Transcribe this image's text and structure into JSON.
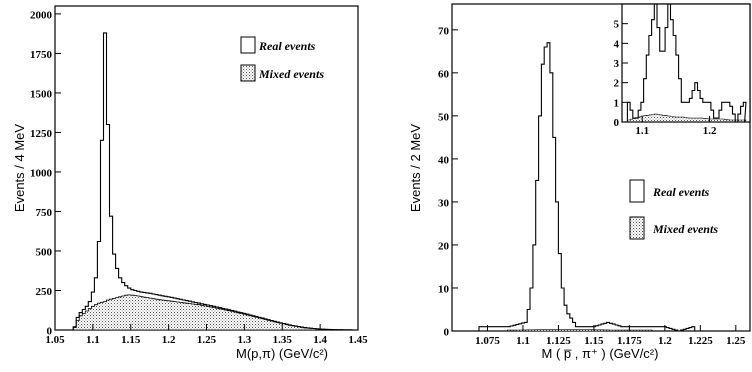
{
  "chart_data": [
    {
      "type": "histogram",
      "ylabel": "Events  / 4 MeV",
      "xlabel": "M(p,π)  (GeV/c²)",
      "xlim": [
        1.05,
        1.45
      ],
      "ylim": [
        0,
        2050
      ],
      "xticks": [
        "1.05",
        "1.1",
        "1.15",
        "1.2",
        "1.25",
        "1.3",
        "1.35",
        "1.4",
        "1.45"
      ],
      "yticks": [
        "0",
        "250",
        "500",
        "750",
        "1000",
        "1250",
        "1500",
        "1750",
        "2000"
      ],
      "legend": [
        "Real events",
        "Mixed events"
      ],
      "legend_position": "top-right",
      "bin_width": 0.004,
      "series": [
        {
          "name": "Real events",
          "style": "outline",
          "x": [
            1.076,
            1.08,
            1.084,
            1.088,
            1.092,
            1.096,
            1.1,
            1.104,
            1.108,
            1.112,
            1.116,
            1.12,
            1.124,
            1.128,
            1.132,
            1.136,
            1.14,
            1.144,
            1.148,
            1.152,
            1.156,
            1.16,
            1.164,
            1.168,
            1.172,
            1.176,
            1.18,
            1.188,
            1.2,
            1.22,
            1.24,
            1.26,
            1.28,
            1.3,
            1.32,
            1.34,
            1.36,
            1.38,
            1.4,
            1.42,
            1.44
          ],
          "values": [
            20,
            80,
            110,
            130,
            150,
            180,
            240,
            330,
            560,
            1200,
            1880,
            1300,
            720,
            480,
            390,
            330,
            300,
            280,
            265,
            255,
            250,
            245,
            240,
            238,
            235,
            232,
            228,
            220,
            210,
            190,
            170,
            150,
            128,
            105,
            80,
            55,
            32,
            15,
            6,
            2,
            1
          ]
        },
        {
          "name": "Mixed events",
          "style": "stippled",
          "x": [
            1.076,
            1.08,
            1.084,
            1.088,
            1.092,
            1.096,
            1.1,
            1.104,
            1.108,
            1.112,
            1.116,
            1.12,
            1.124,
            1.128,
            1.132,
            1.136,
            1.14,
            1.144,
            1.148,
            1.152,
            1.156,
            1.16,
            1.164,
            1.168,
            1.172,
            1.176,
            1.18,
            1.188,
            1.2,
            1.22,
            1.24,
            1.26,
            1.28,
            1.3,
            1.32,
            1.34,
            1.36,
            1.38,
            1.4,
            1.42,
            1.44
          ],
          "values": [
            15,
            60,
            90,
            105,
            120,
            135,
            150,
            160,
            170,
            175,
            180,
            190,
            195,
            200,
            205,
            210,
            215,
            220,
            222,
            220,
            218,
            215,
            212,
            208,
            205,
            202,
            198,
            192,
            185,
            172,
            160,
            142,
            122,
            100,
            76,
            52,
            30,
            14,
            5,
            1,
            0
          ]
        }
      ]
    },
    {
      "type": "histogram",
      "ylabel": "Events  / 2 MeV",
      "xlabel": "M ( p̅ , π⁺ )   (GeV/c²)",
      "xlim": [
        1.05,
        1.26
      ],
      "ylim": [
        0,
        76
      ],
      "xticks": [
        "1.075",
        "1.1",
        "1.125",
        "1.15",
        "1.175",
        "1.2",
        "1.225",
        "1.25"
      ],
      "yticks": [
        "0",
        "10",
        "20",
        "30",
        "40",
        "50",
        "60",
        "70"
      ],
      "legend": [
        "Real events",
        "Mixed events"
      ],
      "legend_position": "center-right",
      "bin_width": 0.002,
      "series": [
        {
          "name": "Real events",
          "style": "outline",
          "x": [
            1.07,
            1.09,
            1.102,
            1.104,
            1.106,
            1.108,
            1.11,
            1.112,
            1.114,
            1.116,
            1.118,
            1.12,
            1.122,
            1.124,
            1.126,
            1.128,
            1.13,
            1.132,
            1.134,
            1.136,
            1.138,
            1.14,
            1.15,
            1.16,
            1.17,
            1.18,
            1.19,
            1.2,
            1.21,
            1.22
          ],
          "values": [
            1,
            1,
            2,
            5,
            10,
            20,
            35,
            50,
            62,
            66,
            67,
            60,
            45,
            30,
            18,
            10,
            6,
            4,
            3,
            2,
            1,
            1,
            1,
            2,
            1,
            1,
            1,
            1,
            0,
            1
          ]
        },
        {
          "name": "Mixed events",
          "style": "stippled",
          "x": [
            1.09,
            1.11,
            1.13,
            1.15,
            1.17,
            1.19
          ],
          "values": [
            0.2,
            0.3,
            0.3,
            0.3,
            0.2,
            0.2
          ]
        }
      ],
      "inset": {
        "xlim": [
          1.07,
          1.26
        ],
        "ylim": [
          0,
          6
        ],
        "xticks": [
          "1.1",
          "1.2"
        ],
        "yticks": [
          "0",
          "1",
          "2",
          "3",
          "4",
          "5"
        ],
        "series": [
          {
            "name": "Real events",
            "x": [
              1.08,
              1.09,
              1.1,
              1.11,
              1.12,
              1.13,
              1.14,
              1.15,
              1.16,
              1.17,
              1.18,
              1.19,
              1.2,
              1.21,
              1.22,
              1.23,
              1.24,
              1.25
            ],
            "values": [
              1,
              0,
              1,
              4,
              6,
              3,
              6,
              4,
              1,
              1,
              2,
              1,
              1,
              0,
              1,
              1,
              0,
              1
            ]
          },
          {
            "name": "Mixed events",
            "x": [
              1.08,
              1.09,
              1.1,
              1.11,
              1.12,
              1.13,
              1.14,
              1.15,
              1.16,
              1.17,
              1.18,
              1.19,
              1.2,
              1.21,
              1.22,
              1.23,
              1.24,
              1.25
            ],
            "values": [
              0.1,
              0.2,
              0.3,
              0.35,
              0.4,
              0.35,
              0.3,
              0.25,
              0.25,
              0.2,
              0.2,
              0.2,
              0.15,
              0.15,
              0.15,
              0.1,
              0.1,
              0.1
            ]
          }
        ]
      }
    }
  ]
}
